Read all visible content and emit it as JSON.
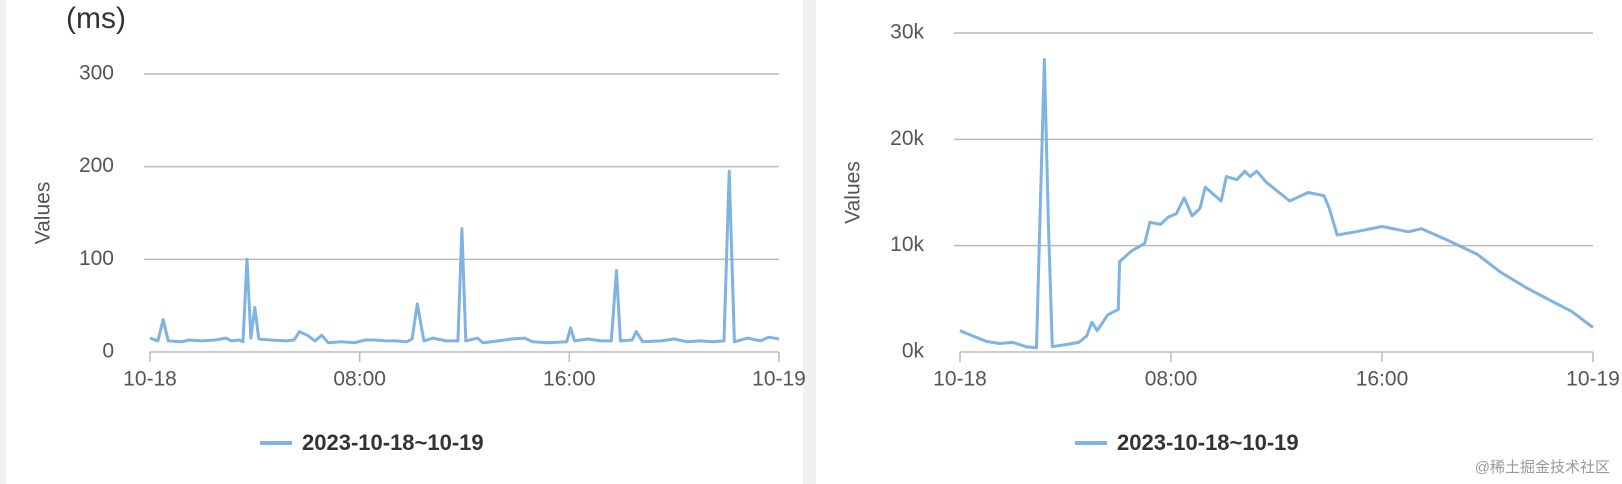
{
  "chart_data": [
    {
      "type": "line",
      "y_unit": "(ms)",
      "ylabel": "Values",
      "xlim": [
        0,
        24
      ],
      "xticks": [
        {
          "value": 0,
          "label": "10-18"
        },
        {
          "value": 8,
          "label": "08:00"
        },
        {
          "value": 16,
          "label": "16:00"
        },
        {
          "value": 24,
          "label": "10-19"
        }
      ],
      "ylim": [
        0,
        300
      ],
      "yticks": [
        0,
        100,
        200,
        300
      ],
      "grid": true,
      "series": [
        {
          "name": "2023-10-18~10-19",
          "color": "#7fb3e3",
          "x": [
            0,
            0.3,
            0.5,
            0.7,
            1.2,
            1.5,
            2,
            2.5,
            2.9,
            3.1,
            3.4,
            3.55,
            3.7,
            3.85,
            4.0,
            4.15,
            4.6,
            5.2,
            5.5,
            5.7,
            6.0,
            6.3,
            6.55,
            6.8,
            7.3,
            7.8,
            8.2,
            8.6,
            9.0,
            9.4,
            9.8,
            10.0,
            10.2,
            10.45,
            10.8,
            11.3,
            11.75,
            11.9,
            12.05,
            12.5,
            12.7,
            13.3,
            13.8,
            14.3,
            14.6,
            15.2,
            15.9,
            16.05,
            16.2,
            16.7,
            17.2,
            17.6,
            17.8,
            17.95,
            18.4,
            18.55,
            18.8,
            19.5,
            20.0,
            20.5,
            21.0,
            21.5,
            21.9,
            22.1,
            22.3,
            22.8,
            23.3,
            23.6,
            24
          ],
          "values": [
            15,
            12,
            35,
            12,
            11,
            13,
            12,
            13,
            15,
            12,
            13,
            11,
            100,
            15,
            48,
            14,
            13,
            12,
            13,
            22,
            18,
            12,
            18,
            10,
            11,
            10,
            13,
            13,
            12,
            12,
            11,
            14,
            52,
            12,
            15,
            12,
            12,
            133,
            12,
            15,
            10,
            12,
            14,
            15,
            11,
            10,
            11,
            26,
            12,
            14,
            12,
            12,
            88,
            12,
            13,
            22,
            11,
            12,
            14,
            11,
            12,
            11,
            12,
            195,
            11,
            15,
            12,
            16,
            14
          ]
        }
      ]
    },
    {
      "type": "line",
      "ylabel": "Values",
      "xlim": [
        0,
        24
      ],
      "xticks": [
        {
          "value": 0,
          "label": "10-18"
        },
        {
          "value": 8,
          "label": "08:00"
        },
        {
          "value": 16,
          "label": "16:00"
        },
        {
          "value": 24,
          "label": "10-19"
        }
      ],
      "ylim": [
        0,
        30000
      ],
      "yticks": [
        {
          "value": 0,
          "label": "0k"
        },
        {
          "value": 10000,
          "label": "10k"
        },
        {
          "value": 20000,
          "label": "20k"
        },
        {
          "value": 30000,
          "label": "30k"
        }
      ],
      "grid": true,
      "series": [
        {
          "name": "2023-10-18~10-19",
          "color": "#7fb3e3",
          "x": [
            0,
            0.5,
            1,
            1.5,
            2,
            2.5,
            2.9,
            3.05,
            3.2,
            3.35,
            3.5,
            4,
            4.5,
            4.8,
            5,
            5.2,
            5.6,
            6,
            6.05,
            6.5,
            7,
            7.2,
            7.6,
            7.9,
            8.2,
            8.5,
            8.8,
            9.1,
            9.3,
            9.9,
            10.1,
            10.5,
            10.8,
            11,
            11.25,
            11.6,
            12,
            12.5,
            13.2,
            13.8,
            14,
            14.3,
            15,
            16,
            17,
            17.5,
            18.5,
            19.6,
            20.5,
            21.5,
            22.5,
            23.2,
            24
          ],
          "values": [
            2000,
            1500,
            1000,
            800,
            900,
            500,
            400,
            14000,
            27500,
            12000,
            500,
            700,
            900,
            1500,
            2800,
            2000,
            3500,
            4000,
            8500,
            9500,
            10200,
            12200,
            12000,
            12700,
            13000,
            14500,
            12800,
            13500,
            15500,
            14200,
            16500,
            16200,
            17000,
            16500,
            17000,
            16000,
            15200,
            14200,
            15000,
            14700,
            13500,
            11000,
            11300,
            11800,
            11300,
            11600,
            10500,
            9200,
            7500,
            6000,
            4700,
            3800,
            2300
          ]
        }
      ]
    }
  ],
  "watermark": "@稀土掘金技术社区"
}
